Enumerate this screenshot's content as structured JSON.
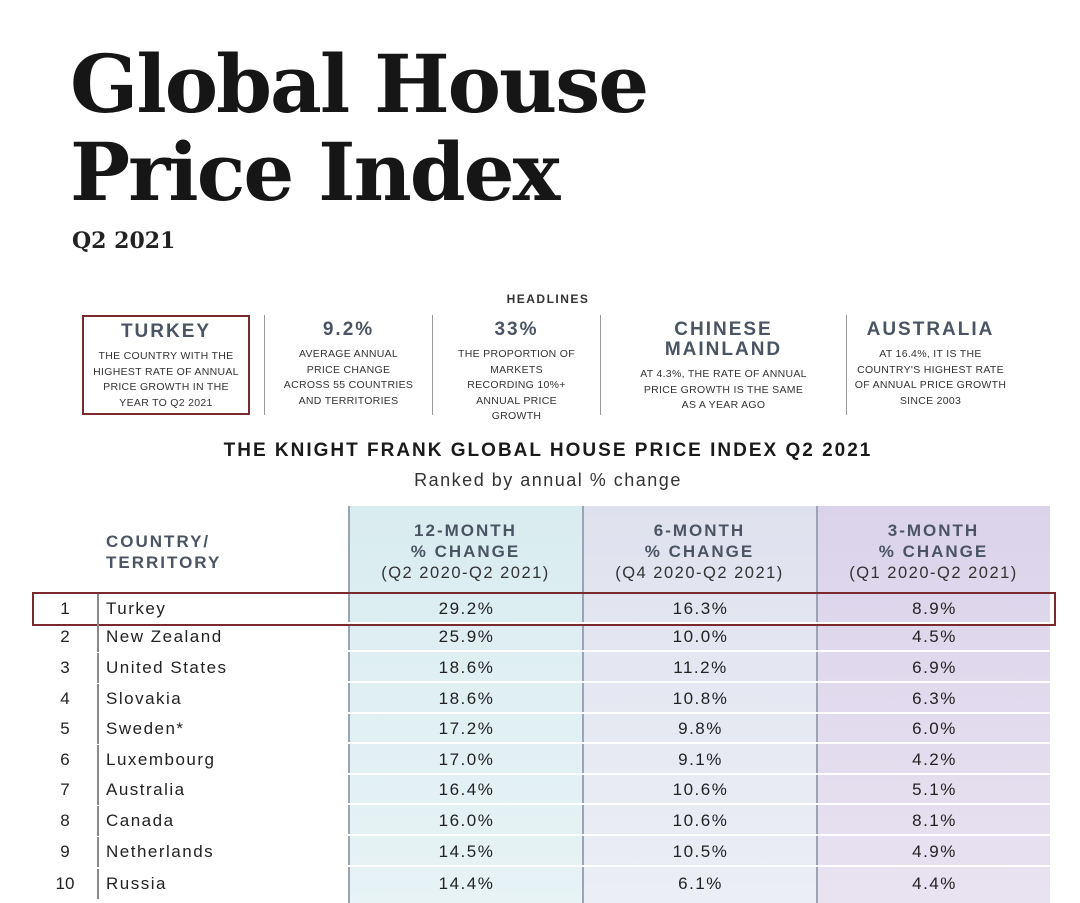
{
  "title_line1": "Global House",
  "title_line2": "Price Index",
  "quarter": "Q2 2021",
  "headlines_label": "HEADLINES",
  "headlines": [
    {
      "title": "TURKEY",
      "desc": "THE COUNTRY WITH THE HIGHEST RATE OF ANNUAL PRICE GROWTH IN THE YEAR TO Q2 2021"
    },
    {
      "title": "9.2%",
      "desc": "AVERAGE ANNUAL PRICE CHANGE ACROSS 55 COUNTRIES AND TERRITORIES"
    },
    {
      "title": "33%",
      "desc": "THE PROPORTION OF MARKETS RECORDING 10%+ ANNUAL PRICE GROWTH"
    },
    {
      "title": "CHINESE MAINLAND",
      "desc": "AT 4.3%, THE RATE OF ANNUAL PRICE GROWTH IS THE SAME AS A YEAR AGO"
    },
    {
      "title": "AUSTRALIA",
      "desc": "AT 16.4%, IT IS THE COUNTRY'S HIGHEST RATE OF ANNUAL PRICE GROWTH SINCE 2003"
    }
  ],
  "table": {
    "title": "THE KNIGHT FRANK GLOBAL HOUSE PRICE INDEX Q2 2021",
    "subtitle": "Ranked by annual % change",
    "headers": {
      "country_l1": "COUNTRY/",
      "country_l2": "TERRITORY",
      "c12_l1": "12-MONTH",
      "c12_l2": "% CHANGE",
      "c12_range": "(Q2 2020-Q2 2021)",
      "c6_l1": "6-MONTH",
      "c6_l2": "% CHANGE",
      "c6_range": "(Q4 2020-Q2 2021)",
      "c3_l1": "3-MONTH",
      "c3_l2": "% CHANGE",
      "c3_range": "(Q1 2020-Q2 2021)"
    },
    "rows": [
      {
        "rank": "1",
        "country": "Turkey",
        "m12": "29.2%",
        "m6": "16.3%",
        "m3": "8.9%"
      },
      {
        "rank": "2",
        "country": "New Zealand",
        "m12": "25.9%",
        "m6": "10.0%",
        "m3": "4.5%"
      },
      {
        "rank": "3",
        "country": "United States",
        "m12": "18.6%",
        "m6": "11.2%",
        "m3": "6.9%"
      },
      {
        "rank": "4",
        "country": "Slovakia",
        "m12": "18.6%",
        "m6": "10.8%",
        "m3": "6.3%"
      },
      {
        "rank": "5",
        "country": "Sweden*",
        "m12": "17.2%",
        "m6": "9.8%",
        "m3": "6.0%"
      },
      {
        "rank": "6",
        "country": "Luxembourg",
        "m12": "17.0%",
        "m6": "9.1%",
        "m3": "4.2%"
      },
      {
        "rank": "7",
        "country": "Australia",
        "m12": "16.4%",
        "m6": "10.6%",
        "m3": "5.1%"
      },
      {
        "rank": "8",
        "country": "Canada",
        "m12": "16.0%",
        "m6": "10.6%",
        "m3": "8.1%"
      },
      {
        "rank": "9",
        "country": "Netherlands",
        "m12": "14.5%",
        "m6": "10.5%",
        "m3": "4.9%"
      },
      {
        "rank": "10",
        "country": "Russia",
        "m12": "14.4%",
        "m6": "6.1%",
        "m3": "4.4%"
      }
    ]
  },
  "colors": {
    "highlight": "#7a2a2d",
    "heading_slate": "#4a5463"
  }
}
